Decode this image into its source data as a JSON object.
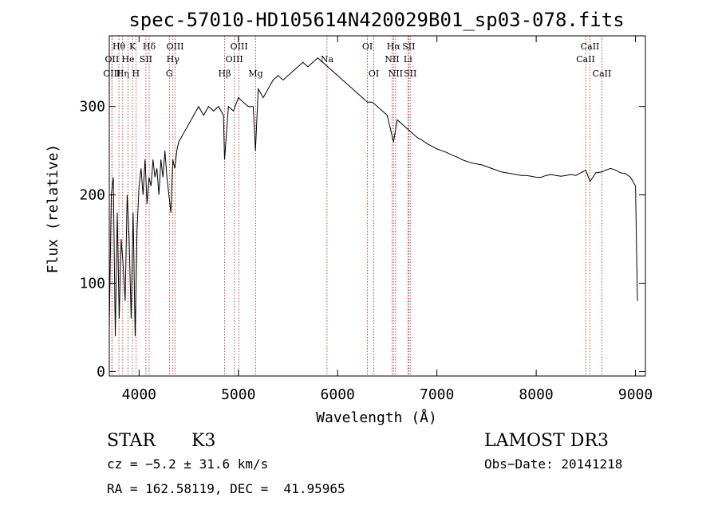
{
  "chart_data": {
    "type": "line",
    "title": "spec-57010-HD105614N420029B01_sp03-078.fits",
    "xlabel": "Wavelength (Å)",
    "ylabel": "Flux (relative)",
    "xlim": [
      3700,
      9100
    ],
    "ylim": [
      -5,
      380
    ],
    "x_ticks": [
      4000,
      5000,
      6000,
      7000,
      8000,
      9000
    ],
    "y_ticks": [
      0,
      100,
      200,
      300
    ],
    "grid": false,
    "series": [
      {
        "name": "spectrum",
        "x": [
          3700,
          3720,
          3740,
          3760,
          3780,
          3800,
          3820,
          3840,
          3860,
          3880,
          3900,
          3920,
          3940,
          3960,
          3980,
          4000,
          4020,
          4040,
          4060,
          4080,
          4100,
          4120,
          4140,
          4160,
          4180,
          4200,
          4220,
          4240,
          4260,
          4280,
          4300,
          4320,
          4340,
          4360,
          4380,
          4400,
          4450,
          4500,
          4550,
          4600,
          4650,
          4700,
          4750,
          4800,
          4850,
          4861,
          4900,
          4950,
          5000,
          5050,
          5100,
          5150,
          5172,
          5200,
          5250,
          5300,
          5350,
          5400,
          5450,
          5500,
          5550,
          5600,
          5650,
          5700,
          5750,
          5800,
          5850,
          5900,
          5950,
          6000,
          6050,
          6100,
          6150,
          6200,
          6250,
          6300,
          6350,
          6400,
          6450,
          6500,
          6563,
          6600,
          6650,
          6700,
          6750,
          6800,
          6850,
          6900,
          6950,
          7000,
          7050,
          7100,
          7150,
          7200,
          7250,
          7300,
          7350,
          7400,
          7450,
          7500,
          7550,
          7600,
          7650,
          7700,
          7750,
          7800,
          7850,
          7900,
          7950,
          8000,
          8050,
          8100,
          8150,
          8200,
          8250,
          8300,
          8350,
          8400,
          8450,
          8500,
          8542,
          8600,
          8662,
          8700,
          8750,
          8800,
          8850,
          8900,
          8950,
          9000,
          9020
        ],
        "values": [
          50,
          200,
          220,
          40,
          180,
          60,
          150,
          120,
          80,
          200,
          150,
          60,
          180,
          40,
          160,
          210,
          230,
          200,
          240,
          190,
          220,
          210,
          240,
          220,
          230,
          200,
          240,
          220,
          250,
          220,
          200,
          180,
          240,
          230,
          250,
          260,
          270,
          280,
          290,
          300,
          290,
          300,
          295,
          300,
          290,
          240,
          300,
          295,
          310,
          305,
          300,
          300,
          250,
          320,
          310,
          320,
          330,
          335,
          330,
          335,
          340,
          345,
          350,
          345,
          350,
          355,
          350,
          345,
          340,
          335,
          330,
          325,
          320,
          315,
          310,
          305,
          305,
          300,
          295,
          290,
          260,
          285,
          280,
          275,
          270,
          265,
          262,
          258,
          255,
          252,
          250,
          248,
          245,
          243,
          240,
          238,
          236,
          235,
          234,
          232,
          230,
          228,
          226,
          225,
          224,
          223,
          222,
          222,
          221,
          220,
          220,
          222,
          223,
          222,
          221,
          222,
          223,
          222,
          225,
          228,
          215,
          225,
          226,
          228,
          230,
          228,
          225,
          224,
          220,
          210,
          80
        ]
      }
    ],
    "spectral_lines": [
      {
        "label": "Hθ",
        "x": 3797,
        "row": 1
      },
      {
        "label": "OII",
        "x": 3727,
        "row": 2
      },
      {
        "label": "OIII",
        "x": 3726,
        "row": 3
      },
      {
        "label": "K",
        "x": 3934,
        "row": 1
      },
      {
        "label": "He",
        "x": 3889,
        "row": 2
      },
      {
        "label": "Hη",
        "x": 3835,
        "row": 3
      },
      {
        "label": "Hδ",
        "x": 4102,
        "row": 1
      },
      {
        "label": "SII",
        "x": 4069,
        "row": 2
      },
      {
        "label": "H",
        "x": 3968,
        "row": 3
      },
      {
        "label": "OIII",
        "x": 4363,
        "row": 1
      },
      {
        "label": "Hγ",
        "x": 4341,
        "row": 2
      },
      {
        "label": "G",
        "x": 4305,
        "row": 3
      },
      {
        "label": "OIII",
        "x": 5007,
        "row": 1
      },
      {
        "label": "OIII",
        "x": 4959,
        "row": 2
      },
      {
        "label": "Hβ",
        "x": 4861,
        "row": 3
      },
      {
        "label": "Mg",
        "x": 5175,
        "row": 3
      },
      {
        "label": "Na",
        "x": 5893,
        "row": 2
      },
      {
        "label": "OI",
        "x": 6300,
        "row": 1
      },
      {
        "label": "OI",
        "x": 6364,
        "row": 3
      },
      {
        "label": "Hα",
        "x": 6563,
        "row": 1
      },
      {
        "label": "SII",
        "x": 6716,
        "row": 1
      },
      {
        "label": "NII",
        "x": 6548,
        "row": 2
      },
      {
        "label": "Li",
        "x": 6708,
        "row": 2
      },
      {
        "label": "NII",
        "x": 6583,
        "row": 3
      },
      {
        "label": "SII",
        "x": 6731,
        "row": 3
      },
      {
        "label": "CaII",
        "x": 8542,
        "row": 1
      },
      {
        "label": "CaII",
        "x": 8498,
        "row": 2
      },
      {
        "label": "CaII",
        "x": 8662,
        "row": 3
      }
    ]
  },
  "info": {
    "object_class": "STAR",
    "subclass": "K3",
    "survey": "LAMOST DR3",
    "cz": "cz = −5.2 ± 31.6 km/s",
    "obs_date": "Obs−Date: 20141218",
    "coords": "RA = 162.58119, DEC =  41.95965"
  },
  "colors": {
    "line": "#000000",
    "marker": "#b22222",
    "background": "#ffffff"
  }
}
